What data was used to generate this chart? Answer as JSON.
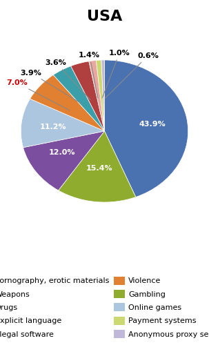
{
  "title": "USA",
  "slices": [
    {
      "label": "Pornography, erotic materials",
      "value": 43.9,
      "color": "#4a72b0"
    },
    {
      "label": "Gambling",
      "value": 15.4,
      "color": "#8fac2e"
    },
    {
      "label": "Weapons",
      "value": 12.0,
      "color": "#7b4ea0"
    },
    {
      "label": "Online games",
      "value": 11.2,
      "color": "#adc6e0"
    },
    {
      "label": "Violence",
      "value": 7.0,
      "color": "#e08030"
    },
    {
      "label": "Explicit language",
      "value": 3.9,
      "color": "#3a9fa8"
    },
    {
      "label": "Illegal software",
      "value": 3.6,
      "color": "#b04040"
    },
    {
      "label": "Drugs",
      "value": 1.4,
      "color": "#e8a8a0"
    },
    {
      "label": "Payment systems",
      "value": 1.0,
      "color": "#ccd870"
    },
    {
      "label": "Anonymous proxy servers",
      "value": 0.6,
      "color": "#c0b8d8"
    }
  ],
  "legend_order": [
    "Pornography, erotic materials",
    "Weapons",
    "Drugs",
    "Explicit language",
    "Illegal software",
    "Violence",
    "Gambling",
    "Online games",
    "Payment systems",
    "Anonymous proxy servers"
  ],
  "internal_labels": {
    "Pornography, erotic materials": {
      "text": "43.9%",
      "color": "white",
      "r": 0.58
    },
    "Gambling": {
      "text": "15.4%",
      "color": "white",
      "r": 0.62
    },
    "Weapons": {
      "text": "12.0%",
      "color": "white",
      "r": 0.62
    },
    "Online games": {
      "text": "11.2%",
      "color": "white",
      "r": 0.62
    }
  },
  "external_labels": {
    "Violence": {
      "text": "7.0%",
      "color": "#cc0000"
    },
    "Explicit language": {
      "text": "3.9%",
      "color": "black"
    },
    "Illegal software": {
      "text": "3.6%",
      "color": "black"
    },
    "Drugs": {
      "text": "1.4%",
      "color": "black"
    },
    "Payment systems": {
      "text": "1.0%",
      "color": "black"
    },
    "Anonymous proxy servers": {
      "text": "0.6%",
      "color": "black"
    }
  },
  "startangle": 90,
  "title_fontsize": 16,
  "label_fontsize": 8,
  "legend_fontsize": 8
}
